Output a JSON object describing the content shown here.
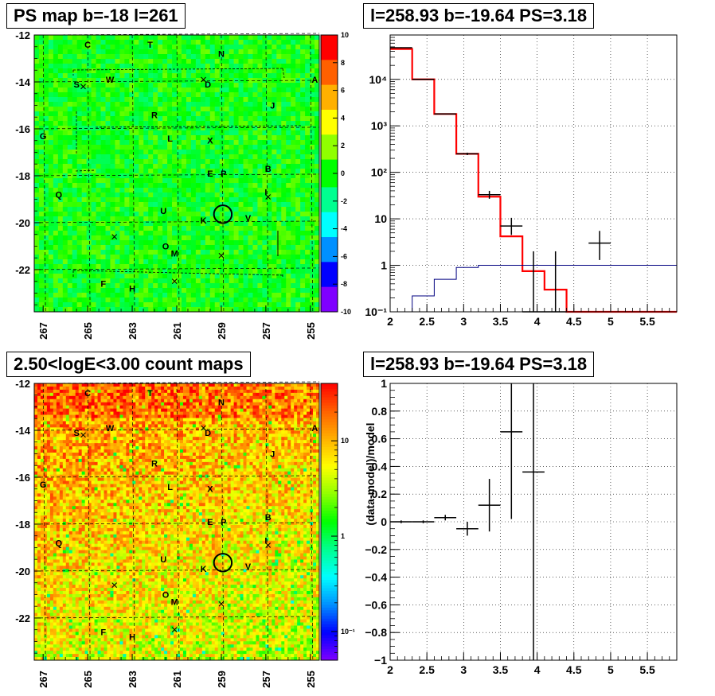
{
  "panels": [
    {
      "title": "PS map b=-18 l=261"
    },
    {
      "title": "l=258.93 b=-19.64 PS=3.18"
    },
    {
      "title": "2.50<logE<3.00 count maps"
    },
    {
      "title": "l=258.93 b=-19.64 PS=3.18"
    }
  ],
  "chart_data": [
    {
      "type": "heatmap",
      "title": "PS map b=-18 l=261",
      "x_ticks": [
        "267",
        "265",
        "263",
        "261",
        "259",
        "257",
        "255"
      ],
      "x_tick_values": [
        267,
        265,
        263,
        261,
        259,
        257,
        255
      ],
      "xlim": [
        267.4,
        254.6
      ],
      "y_ticks": [
        "-12",
        "-14",
        "-16",
        "-18",
        "-20",
        "-22"
      ],
      "y_tick_values": [
        -12,
        -14,
        -16,
        -18,
        -20,
        -22
      ],
      "ylim": [
        -23.8,
        -12.0
      ],
      "colorbar_ticks": [
        "10",
        "8",
        "6",
        "4",
        "2",
        "0",
        "-2",
        "-4",
        "-6",
        "-8",
        "-10"
      ],
      "colorbar_range": [
        -10,
        10
      ],
      "colorscale": [
        "#7f00ff",
        "#0000ff",
        "#0090ff",
        "#00ffff",
        "#00ff90",
        "#00ff00",
        "#90ff00",
        "#ffff00",
        "#ffb000",
        "#ff6000",
        "#ff0000"
      ],
      "source_labels": [
        {
          "t": "C",
          "l": 265.0,
          "b": -12.4
        },
        {
          "t": "T",
          "l": 262.2,
          "b": -12.4
        },
        {
          "t": "N",
          "l": 259.0,
          "b": -12.8
        },
        {
          "t": "S",
          "l": 265.5,
          "b": -14.1
        },
        {
          "t": "W",
          "l": 264.0,
          "b": -13.9
        },
        {
          "t": "D",
          "l": 259.6,
          "b": -14.1
        },
        {
          "t": "A",
          "l": 254.8,
          "b": -13.9
        },
        {
          "t": "J",
          "l": 256.7,
          "b": -15.0
        },
        {
          "t": "R",
          "l": 262.0,
          "b": -15.4
        },
        {
          "t": "G",
          "l": 267.0,
          "b": -16.3
        },
        {
          "t": "L",
          "l": 261.3,
          "b": -16.4
        },
        {
          "t": "X",
          "l": 259.5,
          "b": -16.5
        },
        {
          "t": "B",
          "l": 256.9,
          "b": -17.7
        },
        {
          "t": "E",
          "l": 259.5,
          "b": -17.9
        },
        {
          "t": "P",
          "l": 258.9,
          "b": -17.9
        },
        {
          "t": "I",
          "l": 257.0,
          "b": -18.7
        },
        {
          "t": "Q",
          "l": 266.3,
          "b": -18.8
        },
        {
          "t": "U",
          "l": 261.6,
          "b": -19.5
        },
        {
          "t": "K",
          "l": 259.8,
          "b": -19.9
        },
        {
          "t": "V",
          "l": 257.8,
          "b": -19.8
        },
        {
          "t": "O",
          "l": 261.5,
          "b": -21.0
        },
        {
          "t": "M",
          "l": 261.1,
          "b": -21.3
        },
        {
          "t": "F",
          "l": 264.3,
          "b": -22.6
        },
        {
          "t": "H",
          "l": 263.0,
          "b": -22.8
        }
      ],
      "x_markers": [
        {
          "l": 265.2,
          "b": -14.2
        },
        {
          "l": 259.8,
          "b": -13.9
        },
        {
          "l": 256.9,
          "b": -18.9
        },
        {
          "l": 263.8,
          "b": -20.6
        },
        {
          "l": 259.0,
          "b": -21.4
        },
        {
          "l": 261.1,
          "b": -22.5
        }
      ],
      "circle": {
        "l": 258.93,
        "b": -19.64,
        "r": 0.38
      }
    },
    {
      "type": "line",
      "title": "l=258.93 b=-19.64 PS=3.18",
      "xlim": [
        2,
        5.9
      ],
      "ylim": [
        0.1,
        90000
      ],
      "yscale": "log",
      "x_ticks": [
        "2",
        "2.5",
        "3",
        "3.5",
        "4",
        "4.5",
        "5",
        "5.5"
      ],
      "x_tick_values": [
        2,
        2.5,
        3,
        3.5,
        4,
        4.5,
        5,
        5.5
      ],
      "y_ticks": [
        "10⁻¹",
        "1",
        "10",
        "10²",
        "10³",
        "10⁴"
      ],
      "y_tick_values": [
        0.1,
        1,
        10,
        100,
        1000,
        10000
      ],
      "grid": true,
      "series": [
        {
          "kind": "histogram",
          "color": "#ff0000",
          "edges": [
            2.0,
            2.3,
            2.6,
            2.9,
            3.2,
            3.5,
            3.8,
            4.1,
            4.4,
            5.9
          ],
          "values": [
            45000,
            10000,
            1800,
            250,
            30,
            4.2,
            0.75,
            0.3,
            0.1
          ]
        },
        {
          "kind": "histogram",
          "color": "#000080",
          "edges": [
            2.0,
            2.3,
            2.6,
            2.9,
            3.2,
            3.5,
            3.8,
            4.1,
            4.4,
            5.9
          ],
          "values": [
            0.1,
            0.22,
            0.5,
            0.9,
            1.0,
            1.0,
            1.0,
            1.0,
            1.0
          ]
        },
        {
          "kind": "errorbars",
          "color": "#000000",
          "x": [
            2.15,
            2.45,
            2.75,
            3.05,
            3.35,
            3.65,
            3.95,
            4.25,
            4.85
          ],
          "y": [
            48000,
            10000,
            1800,
            250,
            33,
            7,
            0.1,
            0.1,
            3.0
          ],
          "ylo": [
            47000,
            9800,
            1750,
            235,
            27,
            4.5,
            0.1,
            0.1,
            1.3
          ],
          "yhi": [
            49000,
            10200,
            1850,
            265,
            40,
            10.5,
            2.0,
            2.0,
            5.5
          ],
          "xerr": 0.15
        }
      ]
    },
    {
      "type": "heatmap",
      "title": "2.50<logE<3.00 count maps",
      "x_ticks": [
        "267",
        "265",
        "263",
        "261",
        "259",
        "257",
        "255"
      ],
      "x_tick_values": [
        267,
        265,
        263,
        261,
        259,
        257,
        255
      ],
      "xlim": [
        267.4,
        254.6
      ],
      "y_ticks": [
        "-12",
        "-14",
        "-16",
        "-18",
        "-20",
        "-22"
      ],
      "y_tick_values": [
        -12,
        -14,
        -16,
        -18,
        -20,
        -22
      ],
      "ylim": [
        -23.8,
        -12.0
      ],
      "colorbar_ticks": [
        "10",
        "1",
        "10⁻¹"
      ],
      "colorbar_tick_values": [
        10,
        1,
        0.1
      ],
      "colorbar_range": [
        0.05,
        40
      ],
      "colorbar_scale": "log",
      "colorscale": [
        "#7f00ff",
        "#0000ff",
        "#0090ff",
        "#00ffff",
        "#00ff90",
        "#00ff00",
        "#90ff00",
        "#ffff00",
        "#ffb000",
        "#ff6000",
        "#ff0000"
      ],
      "source_labels": [
        {
          "t": "C",
          "l": 265.0,
          "b": -12.4
        },
        {
          "t": "T",
          "l": 262.2,
          "b": -12.4
        },
        {
          "t": "N",
          "l": 259.0,
          "b": -12.8
        },
        {
          "t": "S",
          "l": 265.5,
          "b": -14.1
        },
        {
          "t": "W",
          "l": 264.0,
          "b": -13.9
        },
        {
          "t": "D",
          "l": 259.6,
          "b": -14.1
        },
        {
          "t": "A",
          "l": 254.8,
          "b": -13.9
        },
        {
          "t": "J",
          "l": 256.7,
          "b": -15.0
        },
        {
          "t": "R",
          "l": 262.0,
          "b": -15.4
        },
        {
          "t": "G",
          "l": 267.0,
          "b": -16.3
        },
        {
          "t": "L",
          "l": 261.3,
          "b": -16.4
        },
        {
          "t": "X",
          "l": 259.5,
          "b": -16.5
        },
        {
          "t": "B",
          "l": 256.9,
          "b": -17.7
        },
        {
          "t": "E",
          "l": 259.5,
          "b": -17.9
        },
        {
          "t": "P",
          "l": 258.9,
          "b": -17.9
        },
        {
          "t": "I",
          "l": 257.0,
          "b": -18.7
        },
        {
          "t": "Q",
          "l": 266.3,
          "b": -18.8
        },
        {
          "t": "U",
          "l": 261.6,
          "b": -19.5
        },
        {
          "t": "K",
          "l": 259.8,
          "b": -19.9
        },
        {
          "t": "V",
          "l": 257.8,
          "b": -19.8
        },
        {
          "t": "O",
          "l": 261.5,
          "b": -21.0
        },
        {
          "t": "M",
          "l": 261.1,
          "b": -21.3
        },
        {
          "t": "F",
          "l": 264.3,
          "b": -22.6
        },
        {
          "t": "H",
          "l": 263.0,
          "b": -22.8
        }
      ],
      "x_markers": [
        {
          "l": 265.2,
          "b": -14.2
        },
        {
          "l": 259.8,
          "b": -13.9
        },
        {
          "l": 256.9,
          "b": -18.9
        },
        {
          "l": 263.8,
          "b": -20.6
        },
        {
          "l": 259.0,
          "b": -21.4
        },
        {
          "l": 261.1,
          "b": -22.5
        }
      ],
      "circle": {
        "l": 258.93,
        "b": -19.64,
        "r": 0.38
      }
    },
    {
      "type": "scatter",
      "title": "l=258.93 b=-19.64 PS=3.18",
      "ylabel": "(data-model)/model",
      "xlim": [
        2,
        5.9
      ],
      "ylim": [
        -1,
        1
      ],
      "x_ticks": [
        "2",
        "2.5",
        "3",
        "3.5",
        "4",
        "4.5",
        "5",
        "5.5"
      ],
      "x_tick_values": [
        2,
        2.5,
        3,
        3.5,
        4,
        4.5,
        5,
        5.5
      ],
      "y_ticks": [
        "1",
        "0.8",
        "0.6",
        "0.4",
        "0.2",
        "0",
        "−0.2",
        "−0.4",
        "−0.6",
        "−0.8",
        "−1"
      ],
      "y_tick_values": [
        1,
        0.8,
        0.6,
        0.4,
        0.2,
        0,
        -0.2,
        -0.4,
        -0.6,
        -0.8,
        -1
      ],
      "grid": true,
      "series": [
        {
          "kind": "errorbars",
          "color": "#000000",
          "x": [
            2.15,
            2.45,
            2.75,
            3.05,
            3.35,
            3.65,
            3.95
          ],
          "y": [
            0.0,
            0.0,
            0.03,
            -0.05,
            0.12,
            0.65,
            0.36
          ],
          "ylo": [
            -0.01,
            -0.01,
            0.01,
            -0.1,
            -0.07,
            0.02,
            -1.0
          ],
          "yhi": [
            0.01,
            0.01,
            0.05,
            0.0,
            0.31,
            1.0,
            1.0
          ],
          "xerr": 0.15
        }
      ]
    }
  ]
}
